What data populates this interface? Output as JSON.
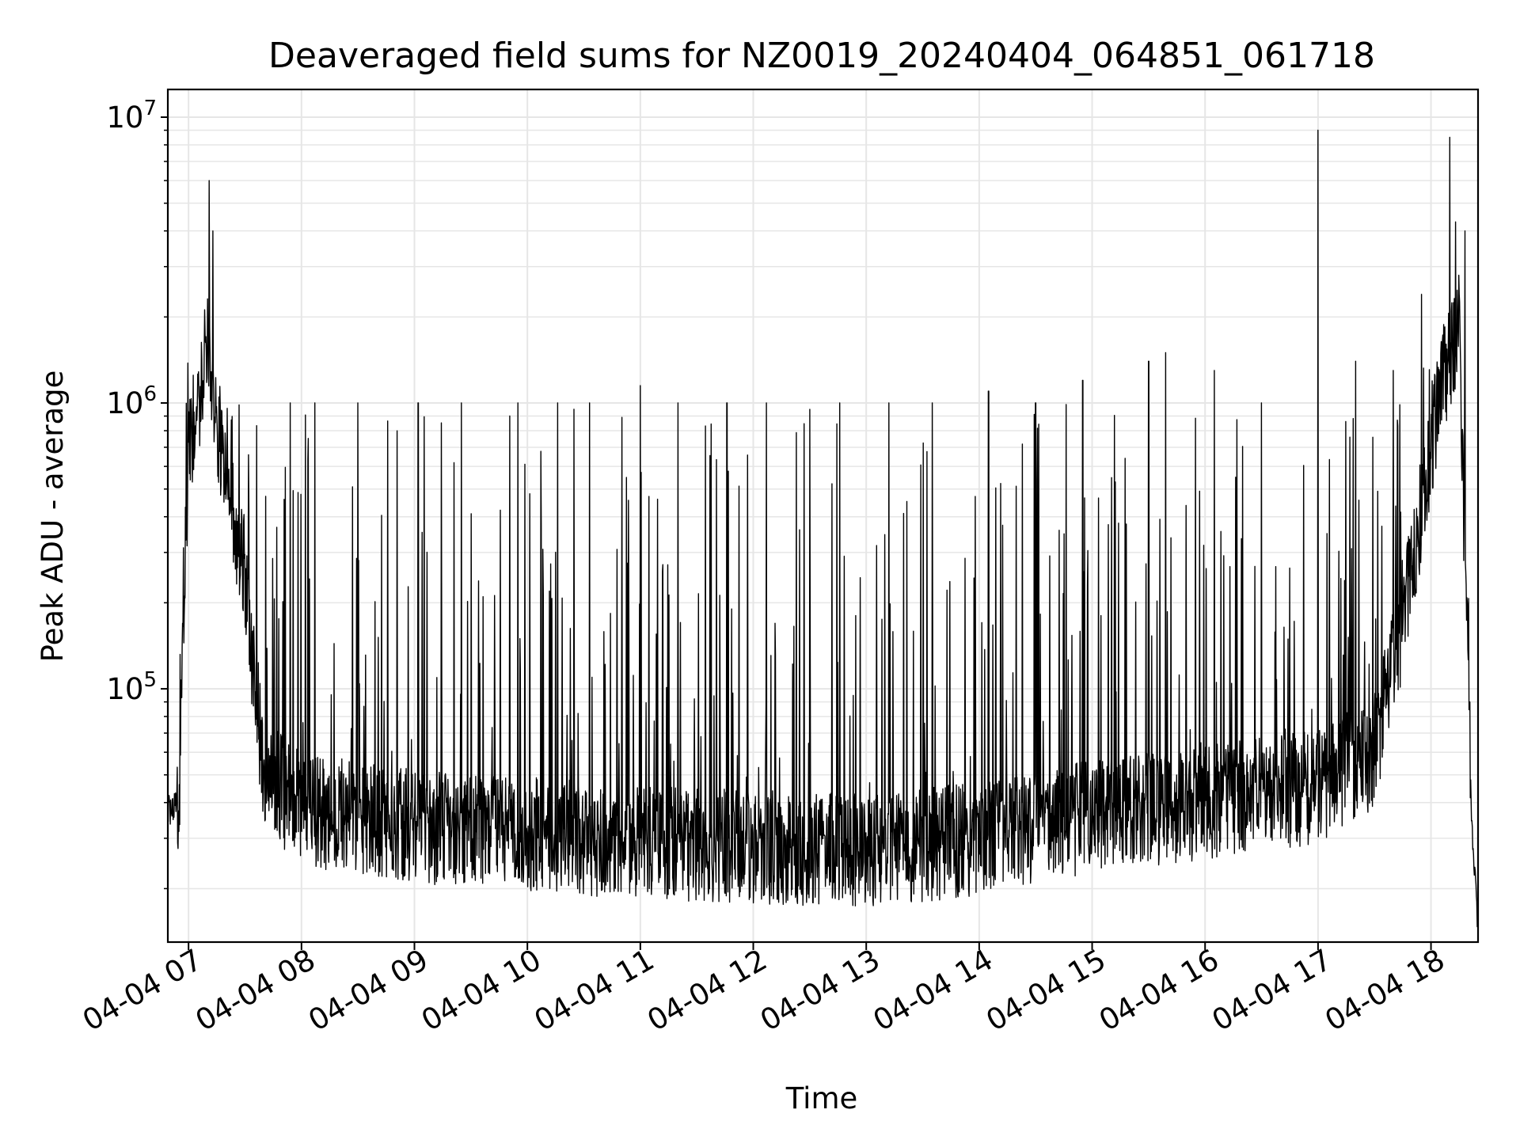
{
  "chart_data": {
    "type": "line",
    "title": "Deaveraged field sums for NZ0019_20240404_064851_061718",
    "xlabel": "Time",
    "ylabel": "Peak ADU - average",
    "yscale": "log",
    "ylim": [
      13000,
      12500000
    ],
    "xlim": [
      "2024-04-04 06:49",
      "2024-04-04 18:25"
    ],
    "x_ticks": [
      {
        "t": "2024-04-04 07:00",
        "label": "04-04 07"
      },
      {
        "t": "2024-04-04 08:00",
        "label": "04-04 08"
      },
      {
        "t": "2024-04-04 09:00",
        "label": "04-04 09"
      },
      {
        "t": "2024-04-04 10:00",
        "label": "04-04 10"
      },
      {
        "t": "2024-04-04 11:00",
        "label": "04-04 11"
      },
      {
        "t": "2024-04-04 12:00",
        "label": "04-04 12"
      },
      {
        "t": "2024-04-04 13:00",
        "label": "04-04 13"
      },
      {
        "t": "2024-04-04 14:00",
        "label": "04-04 14"
      },
      {
        "t": "2024-04-04 15:00",
        "label": "04-04 15"
      },
      {
        "t": "2024-04-04 16:00",
        "label": "04-04 16"
      },
      {
        "t": "2024-04-04 17:00",
        "label": "04-04 17"
      },
      {
        "t": "2024-04-04 18:00",
        "label": "04-04 18"
      }
    ],
    "y_ticks": [
      {
        "value": 100000,
        "base": "10",
        "exp": "5"
      },
      {
        "value": 1000000,
        "base": "10",
        "exp": "6"
      },
      {
        "value": 10000000,
        "base": "10",
        "exp": "7"
      }
    ],
    "grid": true,
    "line_color": "#000000",
    "series": [
      {
        "baseline": [
          {
            "t": "2024-04-04 06:49",
            "value": 38000
          },
          {
            "t": "2024-04-04 06:55",
            "value": 40000
          },
          {
            "t": "2024-04-04 07:00",
            "value": 700000
          },
          {
            "t": "2024-04-04 07:10",
            "value": 1500000
          },
          {
            "t": "2024-04-04 07:20",
            "value": 550000
          },
          {
            "t": "2024-04-04 07:30",
            "value": 250000
          },
          {
            "t": "2024-04-04 07:40",
            "value": 50000
          },
          {
            "t": "2024-04-04 08:00",
            "value": 38000
          },
          {
            "t": "2024-04-04 09:00",
            "value": 33000
          },
          {
            "t": "2024-04-04 10:00",
            "value": 31000
          },
          {
            "t": "2024-04-04 11:00",
            "value": 29000
          },
          {
            "t": "2024-04-04 12:00",
            "value": 28000
          },
          {
            "t": "2024-04-04 13:00",
            "value": 27000
          },
          {
            "t": "2024-04-04 14:00",
            "value": 30000
          },
          {
            "t": "2024-04-04 15:00",
            "value": 36000
          },
          {
            "t": "2024-04-04 16:00",
            "value": 40000
          },
          {
            "t": "2024-04-04 16:30",
            "value": 43000
          },
          {
            "t": "2024-04-04 17:00",
            "value": 45000
          },
          {
            "t": "2024-04-04 17:30",
            "value": 60000
          },
          {
            "t": "2024-04-04 17:50",
            "value": 250000
          },
          {
            "t": "2024-04-04 18:05",
            "value": 1200000
          },
          {
            "t": "2024-04-04 18:15",
            "value": 1800000
          },
          {
            "t": "2024-04-04 18:20",
            "value": 90000
          },
          {
            "t": "2024-04-04 18:22",
            "value": 30000
          },
          {
            "t": "2024-04-04 18:25",
            "value": 14000
          }
        ],
        "peaks": [
          {
            "t": "2024-04-04 07:11",
            "value": 6000000
          },
          {
            "t": "2024-04-04 07:13",
            "value": 4000000
          },
          {
            "t": "2024-04-04 07:54",
            "value": 1000000
          },
          {
            "t": "2024-04-04 08:07",
            "value": 1000000
          },
          {
            "t": "2024-04-04 08:30",
            "value": 1000000
          },
          {
            "t": "2024-04-04 09:02",
            "value": 1000000
          },
          {
            "t": "2024-04-04 09:25",
            "value": 1000000
          },
          {
            "t": "2024-04-04 09:55",
            "value": 1000000
          },
          {
            "t": "2024-04-04 10:16",
            "value": 1000000
          },
          {
            "t": "2024-04-04 10:33",
            "value": 1000000
          },
          {
            "t": "2024-04-04 11:00",
            "value": 1150000
          },
          {
            "t": "2024-04-04 11:20",
            "value": 1000000
          },
          {
            "t": "2024-04-04 11:46",
            "value": 1000000
          },
          {
            "t": "2024-04-04 12:07",
            "value": 1000000
          },
          {
            "t": "2024-04-04 12:30",
            "value": 950000
          },
          {
            "t": "2024-04-04 12:46",
            "value": 1000000
          },
          {
            "t": "2024-04-04 13:12",
            "value": 1000000
          },
          {
            "t": "2024-04-04 13:35",
            "value": 1000000
          },
          {
            "t": "2024-04-04 14:05",
            "value": 1100000
          },
          {
            "t": "2024-04-04 14:30",
            "value": 1000000
          },
          {
            "t": "2024-04-04 14:55",
            "value": 1200000
          },
          {
            "t": "2024-04-04 15:30",
            "value": 1400000
          },
          {
            "t": "2024-04-04 15:39",
            "value": 1500000
          },
          {
            "t": "2024-04-04 16:05",
            "value": 1300000
          },
          {
            "t": "2024-04-04 16:30",
            "value": 1000000
          },
          {
            "t": "2024-04-04 17:00",
            "value": 9000000
          },
          {
            "t": "2024-04-04 17:20",
            "value": 1400000
          },
          {
            "t": "2024-04-04 17:40",
            "value": 1300000
          },
          {
            "t": "2024-04-04 17:55",
            "value": 2400000
          },
          {
            "t": "2024-04-04 18:10",
            "value": 8500000
          },
          {
            "t": "2024-04-04 18:13",
            "value": 4300000
          },
          {
            "t": "2024-04-04 18:18",
            "value": 4000000
          }
        ]
      }
    ]
  }
}
